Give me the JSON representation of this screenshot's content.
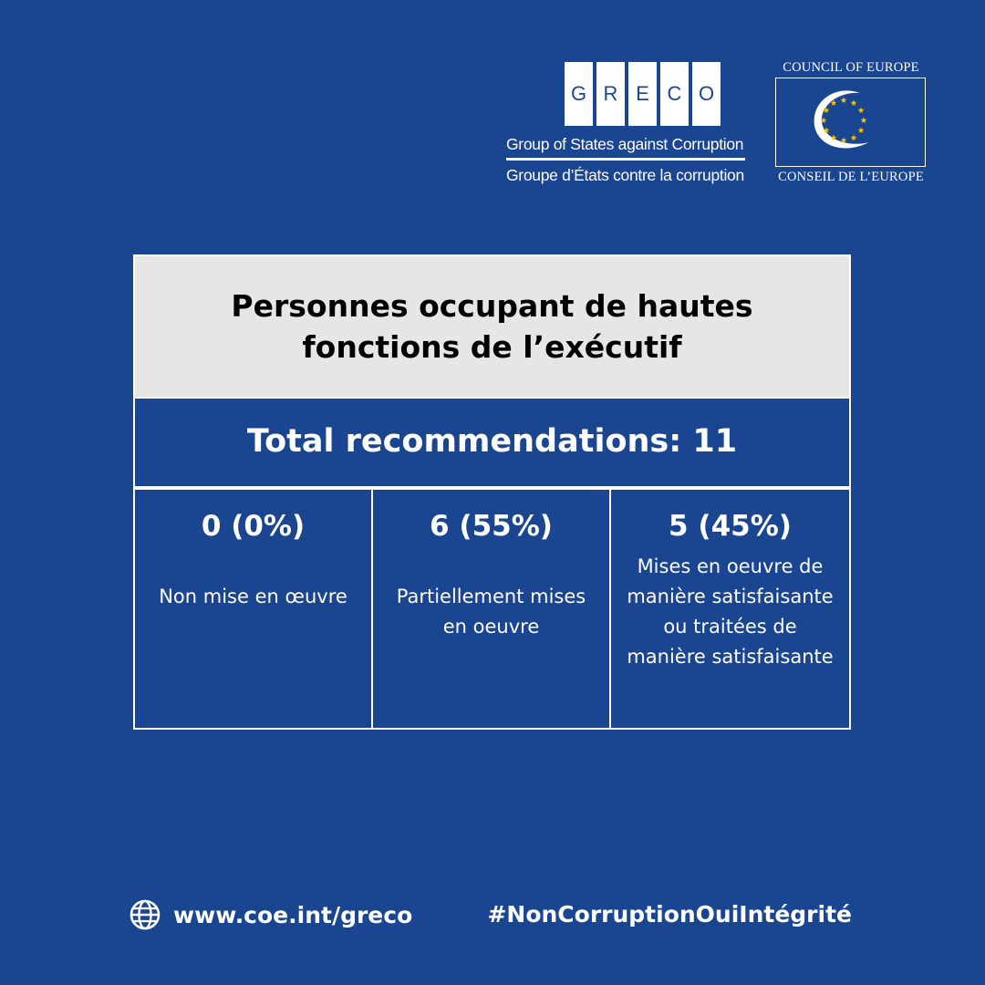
{
  "greco": {
    "letters": [
      "G",
      "R",
      "E",
      "C",
      "O"
    ],
    "name_en": "Group of States against Corruption",
    "name_fr": "Groupe d’États contre la corruption"
  },
  "coe": {
    "top": "COUNCIL OF EUROPE",
    "bottom": "CONSEIL DE L’EUROPE",
    "emblem_icon": "council-of-europe-stars-emblem",
    "star_color": "#f5c400"
  },
  "card": {
    "title": "Personnes occupant de hautes fonctions de l’exécutif",
    "total": "Total recommendations: 11",
    "cells": [
      {
        "value": "0 (0%)",
        "label": "Non mise en œuvre"
      },
      {
        "value": "6 (55%)",
        "label": "Partiellement mises en oeuvre"
      },
      {
        "value": "5 (45%)",
        "label": "Mises en oeuvre de manière satisfaisante ou traitées de manière satisfaisante"
      }
    ]
  },
  "footer": {
    "url": "www.coe.int/greco",
    "hashtag": "#NonCorruptionOuiIntégrité",
    "link_icon": "globe-icon"
  },
  "colors": {
    "background": "#1a4591",
    "header_bg": "#e6e6e6"
  }
}
